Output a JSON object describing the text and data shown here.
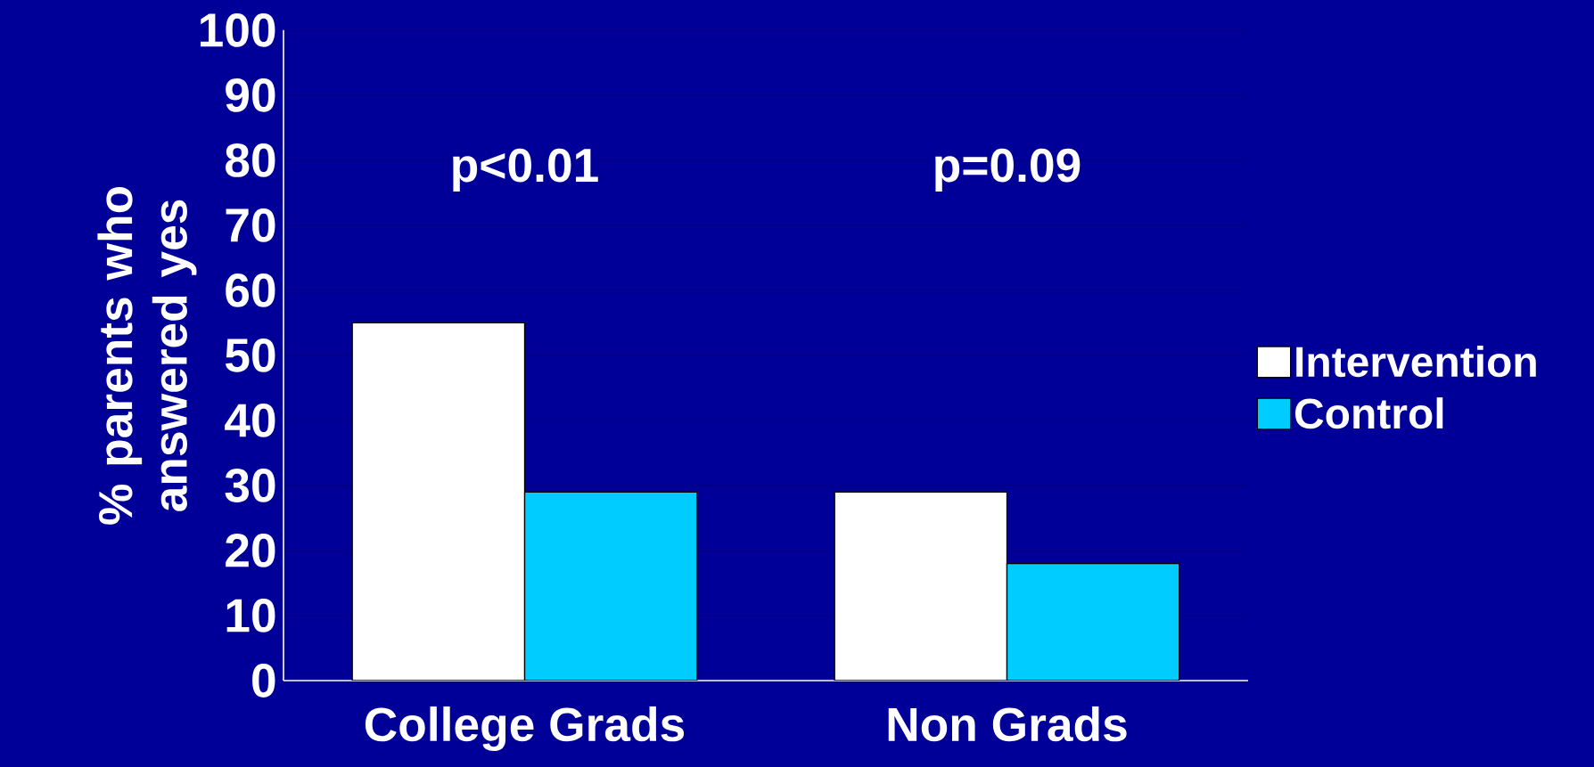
{
  "chart_data": {
    "type": "bar",
    "ylabel": "% parents who answered yes",
    "categories": [
      "College Grads",
      "Non Grads"
    ],
    "series": [
      {
        "name": "Intervention",
        "color": "#ffffff",
        "values": [
          55,
          29
        ]
      },
      {
        "name": "Control",
        "color": "#00ccff",
        "values": [
          29,
          18
        ]
      }
    ],
    "ylim": [
      0,
      100
    ],
    "yticks": [
      0,
      10,
      20,
      30,
      40,
      50,
      60,
      70,
      80,
      90,
      100
    ],
    "grid": "y",
    "legend": "right",
    "annotations": [
      "p<0.01",
      "p=0.09"
    ]
  }
}
